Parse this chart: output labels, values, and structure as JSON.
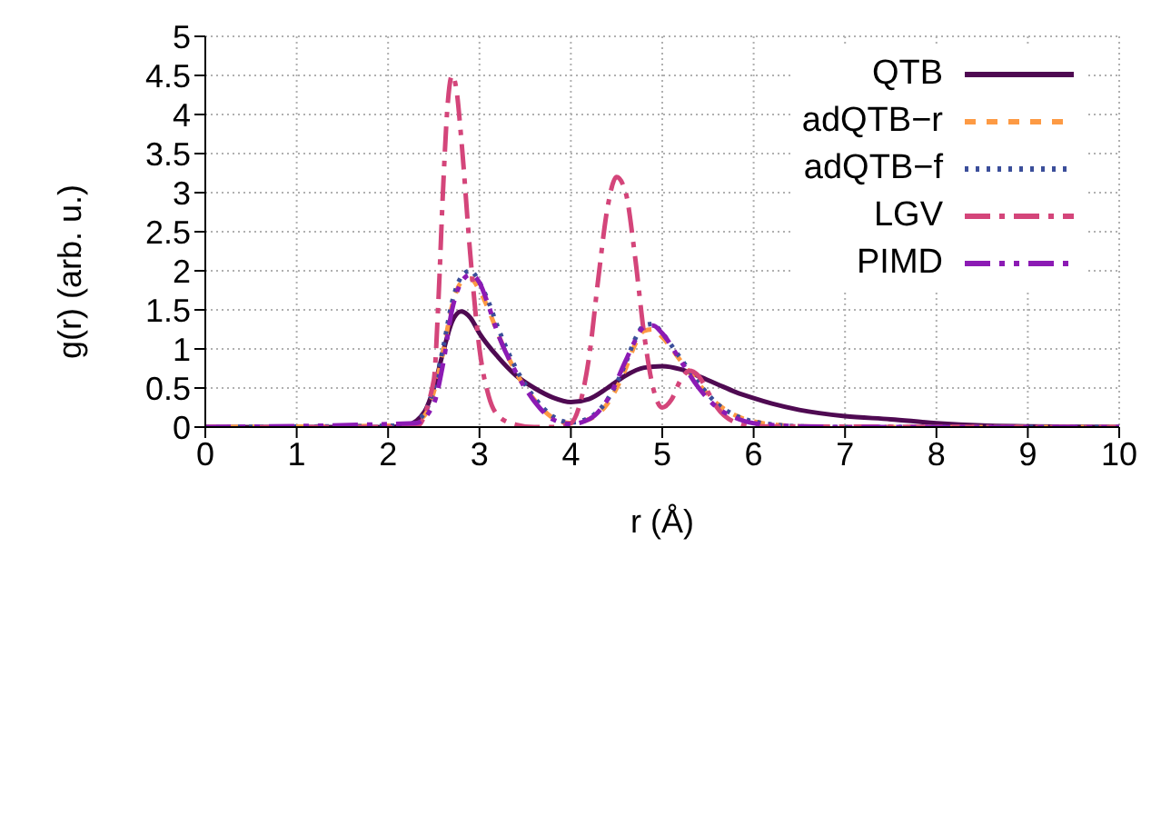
{
  "chart_data": {
    "type": "line",
    "xlabel": "r (Å)",
    "ylabel": "g(r) (arb. u.)",
    "xlim": [
      0,
      10
    ],
    "xticks": [
      0,
      1,
      2,
      3,
      4,
      5,
      6,
      7,
      8,
      9,
      10
    ],
    "ylim": [
      0,
      5
    ],
    "yticks": [
      0,
      0.5,
      1,
      1.5,
      2,
      2.5,
      3,
      3.5,
      4,
      4.5,
      5
    ],
    "grid": true,
    "legend": "top right",
    "marker": "none",
    "series": [
      {
        "name": "QTB",
        "color": "#4f0a52",
        "line_style": "solid",
        "x": [
          0,
          2.0,
          2.2,
          2.4,
          2.5,
          2.6,
          2.7,
          2.8,
          2.9,
          3.0,
          3.2,
          3.4,
          3.6,
          3.8,
          4.0,
          4.2,
          4.4,
          4.6,
          4.8,
          5.0,
          5.2,
          5.4,
          5.6,
          5.8,
          6.0,
          6.2,
          6.5,
          7.0,
          7.5,
          8.0,
          8.5,
          9.0,
          10
        ],
        "values": [
          0,
          0,
          0.02,
          0.2,
          0.5,
          0.95,
          1.35,
          1.48,
          1.4,
          1.2,
          0.9,
          0.66,
          0.5,
          0.38,
          0.32,
          0.36,
          0.5,
          0.66,
          0.76,
          0.78,
          0.74,
          0.65,
          0.55,
          0.45,
          0.37,
          0.3,
          0.22,
          0.14,
          0.1,
          0.05,
          0.02,
          0.01,
          0
        ]
      },
      {
        "name": "adQTB−r",
        "color": "#fd9a44",
        "line_style": "dashed",
        "x": [
          0,
          2.2,
          2.4,
          2.5,
          2.6,
          2.7,
          2.8,
          2.9,
          3.0,
          3.1,
          3.2,
          3.4,
          3.6,
          3.8,
          4.0,
          4.2,
          4.4,
          4.6,
          4.7,
          4.8,
          4.9,
          5.0,
          5.2,
          5.4,
          5.6,
          5.8,
          6.0,
          6.5,
          7.0,
          10
        ],
        "values": [
          0,
          0.02,
          0.15,
          0.45,
          0.95,
          1.55,
          1.85,
          1.9,
          1.75,
          1.5,
          1.2,
          0.7,
          0.35,
          0.12,
          0.05,
          0.1,
          0.3,
          0.75,
          1.05,
          1.23,
          1.25,
          1.15,
          0.85,
          0.55,
          0.3,
          0.15,
          0.07,
          0.01,
          0,
          0
        ]
      },
      {
        "name": "adQTB−f",
        "color": "#3b4e9a",
        "line_style": "dotted",
        "x": [
          0,
          2.2,
          2.4,
          2.5,
          2.6,
          2.7,
          2.8,
          2.9,
          3.0,
          3.1,
          3.2,
          3.4,
          3.6,
          3.8,
          4.0,
          4.2,
          4.4,
          4.6,
          4.7,
          4.8,
          4.9,
          5.0,
          5.2,
          5.4,
          5.6,
          5.8,
          6.0,
          6.5,
          7.0,
          10
        ],
        "values": [
          0,
          0.02,
          0.18,
          0.5,
          1.0,
          1.6,
          1.92,
          2.0,
          1.85,
          1.6,
          1.28,
          0.75,
          0.38,
          0.14,
          0.06,
          0.12,
          0.35,
          0.82,
          1.12,
          1.3,
          1.32,
          1.2,
          0.88,
          0.56,
          0.3,
          0.15,
          0.07,
          0.01,
          0,
          0
        ]
      },
      {
        "name": "LGV",
        "color": "#d4457a",
        "line_style": "dashdot",
        "x": [
          0,
          2.3,
          2.5,
          2.55,
          2.6,
          2.65,
          2.7,
          2.75,
          2.8,
          2.9,
          3.0,
          3.1,
          3.2,
          3.4,
          3.6,
          3.8,
          4.0,
          4.1,
          4.2,
          4.3,
          4.4,
          4.5,
          4.6,
          4.7,
          4.8,
          4.9,
          5.0,
          5.1,
          5.2,
          5.3,
          5.4,
          5.5,
          5.6,
          5.8,
          6.0,
          10
        ],
        "values": [
          0,
          0,
          0.6,
          1.6,
          3.0,
          4.1,
          4.5,
          4.3,
          3.7,
          2.2,
          1.0,
          0.4,
          0.15,
          0.03,
          0,
          0,
          0.05,
          0.3,
          0.9,
          1.9,
          2.8,
          3.2,
          3.0,
          2.2,
          1.2,
          0.5,
          0.25,
          0.35,
          0.6,
          0.72,
          0.65,
          0.45,
          0.25,
          0.06,
          0.01,
          0
        ]
      },
      {
        "name": "PIMD",
        "color": "#8c1bb4",
        "line_style": "dashdotdot",
        "x": [
          0,
          2.3,
          2.5,
          2.6,
          2.7,
          2.8,
          2.9,
          3.0,
          3.1,
          3.2,
          3.4,
          3.6,
          3.8,
          4.0,
          4.2,
          4.4,
          4.6,
          4.7,
          4.8,
          4.9,
          5.0,
          5.2,
          5.4,
          5.6,
          5.8,
          6.0,
          6.5,
          7,
          10
        ],
        "values": [
          0,
          0.05,
          0.3,
          0.8,
          1.5,
          1.85,
          1.95,
          1.85,
          1.55,
          1.2,
          0.7,
          0.33,
          0.1,
          0.04,
          0.1,
          0.35,
          0.85,
          1.1,
          1.28,
          1.3,
          1.2,
          0.85,
          0.5,
          0.25,
          0.12,
          0.05,
          0.01,
          0,
          0
        ]
      }
    ]
  }
}
